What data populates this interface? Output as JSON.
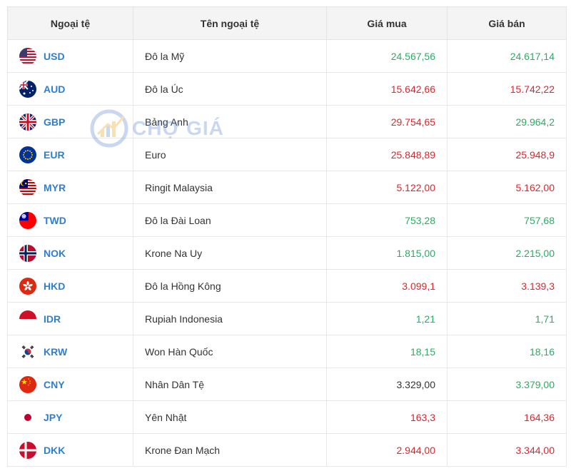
{
  "table": {
    "headers": [
      "Ngoại tệ",
      "Tên ngoại tệ",
      "Giá mua",
      "Giá bán"
    ],
    "rows": [
      {
        "code": "USD",
        "name": "Đô la Mỹ",
        "buy": "24.567,56",
        "sell": "24.617,14",
        "flag": "us-flag-icon"
      },
      {
        "code": "AUD",
        "name": "Đô la Úc",
        "buy": "15.642,66",
        "sell": "15.742,22",
        "flag": "au-flag-icon"
      },
      {
        "code": "GBP",
        "name": "Bảng Anh",
        "buy": "29.754,65",
        "sell": "29.964,2",
        "flag": "gb-flag-icon"
      },
      {
        "code": "EUR",
        "name": "Euro",
        "buy": "25.848,89",
        "sell": "25.948,9",
        "flag": "eu-flag-icon"
      },
      {
        "code": "MYR",
        "name": "Ringit Malaysia",
        "buy": "5.122,00",
        "sell": "5.162,00",
        "flag": "my-flag-icon"
      },
      {
        "code": "TWD",
        "name": "Đô la Đài Loan",
        "buy": "753,28",
        "sell": "757,68",
        "flag": "tw-flag-icon"
      },
      {
        "code": "NOK",
        "name": "Krone Na Uy",
        "buy": "1.815,00",
        "sell": "2.215,00",
        "flag": "no-flag-icon"
      },
      {
        "code": "HKD",
        "name": "Đô la Hồng Kông",
        "buy": "3.099,1",
        "sell": "3.139,3",
        "flag": "hk-flag-icon"
      },
      {
        "code": "IDR",
        "name": "Rupiah Indonesia",
        "buy": "1,21",
        "sell": "1,71",
        "flag": "id-flag-icon"
      },
      {
        "code": "KRW",
        "name": "Won Hàn Quốc",
        "buy": "18,15",
        "sell": "18,16",
        "flag": "kr-flag-icon"
      },
      {
        "code": "CNY",
        "name": "Nhân Dân Tệ",
        "buy": "3.329,00",
        "sell": "3.379,00",
        "flag": "cn-flag-icon"
      },
      {
        "code": "JPY",
        "name": "Yên Nhật",
        "buy": "163,3",
        "sell": "164,36",
        "flag": "jp-flag-icon"
      },
      {
        "code": "DKK",
        "name": "Krone Đan Mạch",
        "buy": "2.944,00",
        "sell": "3.344,00",
        "flag": "dk-flag-icon"
      }
    ]
  },
  "watermark": {
    "text": "CHỢ GIÁ",
    "icon": "chart-logo-icon"
  },
  "colors": {
    "up": "#27ae60",
    "down": "#e0242b",
    "neutral": "#333333",
    "code": "#2d7fd3"
  }
}
